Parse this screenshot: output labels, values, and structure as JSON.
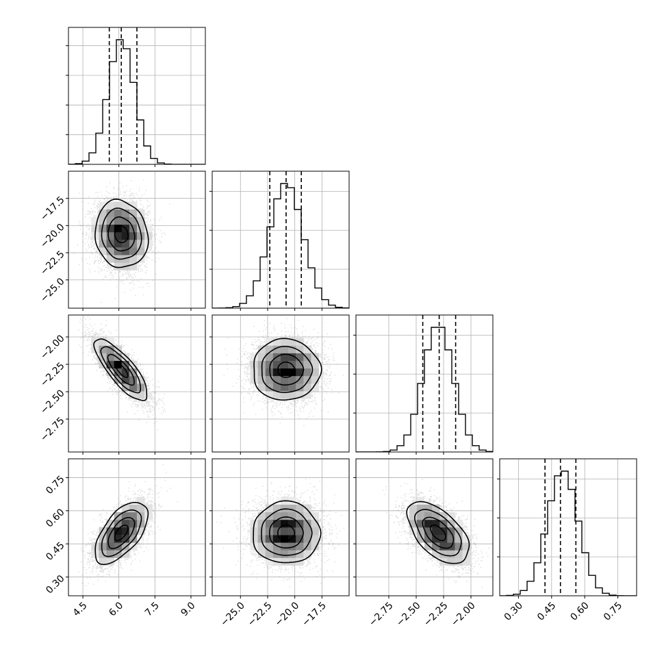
{
  "chart_data": {
    "type": "corner",
    "parameters": [
      {
        "range": [
          3.9,
          9.6
        ],
        "ticks": [
          "4.5",
          "6.0",
          "7.5",
          "9.0"
        ],
        "tick_values": [
          4.5,
          6.0,
          7.5,
          9.0
        ],
        "mean": 6.1,
        "std": 0.55,
        "quantiles": [
          5.6,
          6.1,
          6.75
        ],
        "hist_yticks": 4
      },
      {
        "range": [
          -27.6,
          -15.0
        ],
        "ticks": [
          "−25.0",
          "−22.5",
          "−20.0",
          "−17.5"
        ],
        "tick_values": [
          -25.0,
          -22.5,
          -20.0,
          -17.5
        ],
        "mean": -20.8,
        "std": 1.55,
        "quantiles": [
          -22.3,
          -20.8,
          -19.4
        ],
        "hist_yticks": 3
      },
      {
        "range": [
          -3.05,
          -1.8
        ],
        "ticks": [
          "−2.75",
          "−2.50",
          "−2.25",
          "−2.00"
        ],
        "tick_values": [
          -2.75,
          -2.5,
          -2.25,
          -2.0
        ],
        "mean": -2.3,
        "std": 0.14,
        "quantiles": [
          -2.44,
          -2.29,
          -2.14
        ],
        "hist_yticks": 3
      },
      {
        "range": [
          0.215,
          0.835
        ],
        "ticks": [
          "0.30",
          "0.45",
          "0.60",
          "0.75"
        ],
        "tick_values": [
          0.3,
          0.45,
          0.6,
          0.75
        ],
        "mean": 0.5,
        "std": 0.07,
        "quantiles": [
          0.42,
          0.49,
          0.56
        ],
        "hist_yticks": 3
      }
    ],
    "correlations": [
      {
        "i": 1,
        "j": 0,
        "rho": -0.1
      },
      {
        "i": 2,
        "j": 0,
        "rho": -0.8
      },
      {
        "i": 2,
        "j": 1,
        "rho": 0.0
      },
      {
        "i": 3,
        "j": 0,
        "rho": 0.6
      },
      {
        "i": 3,
        "j": 1,
        "rho": 0.0
      },
      {
        "i": 3,
        "j": 2,
        "rho": -0.55
      }
    ],
    "quantile_lines": "dashed",
    "contour_levels_sigma": [
      0.5,
      1.0,
      1.5,
      2.0
    ],
    "grid": true
  }
}
